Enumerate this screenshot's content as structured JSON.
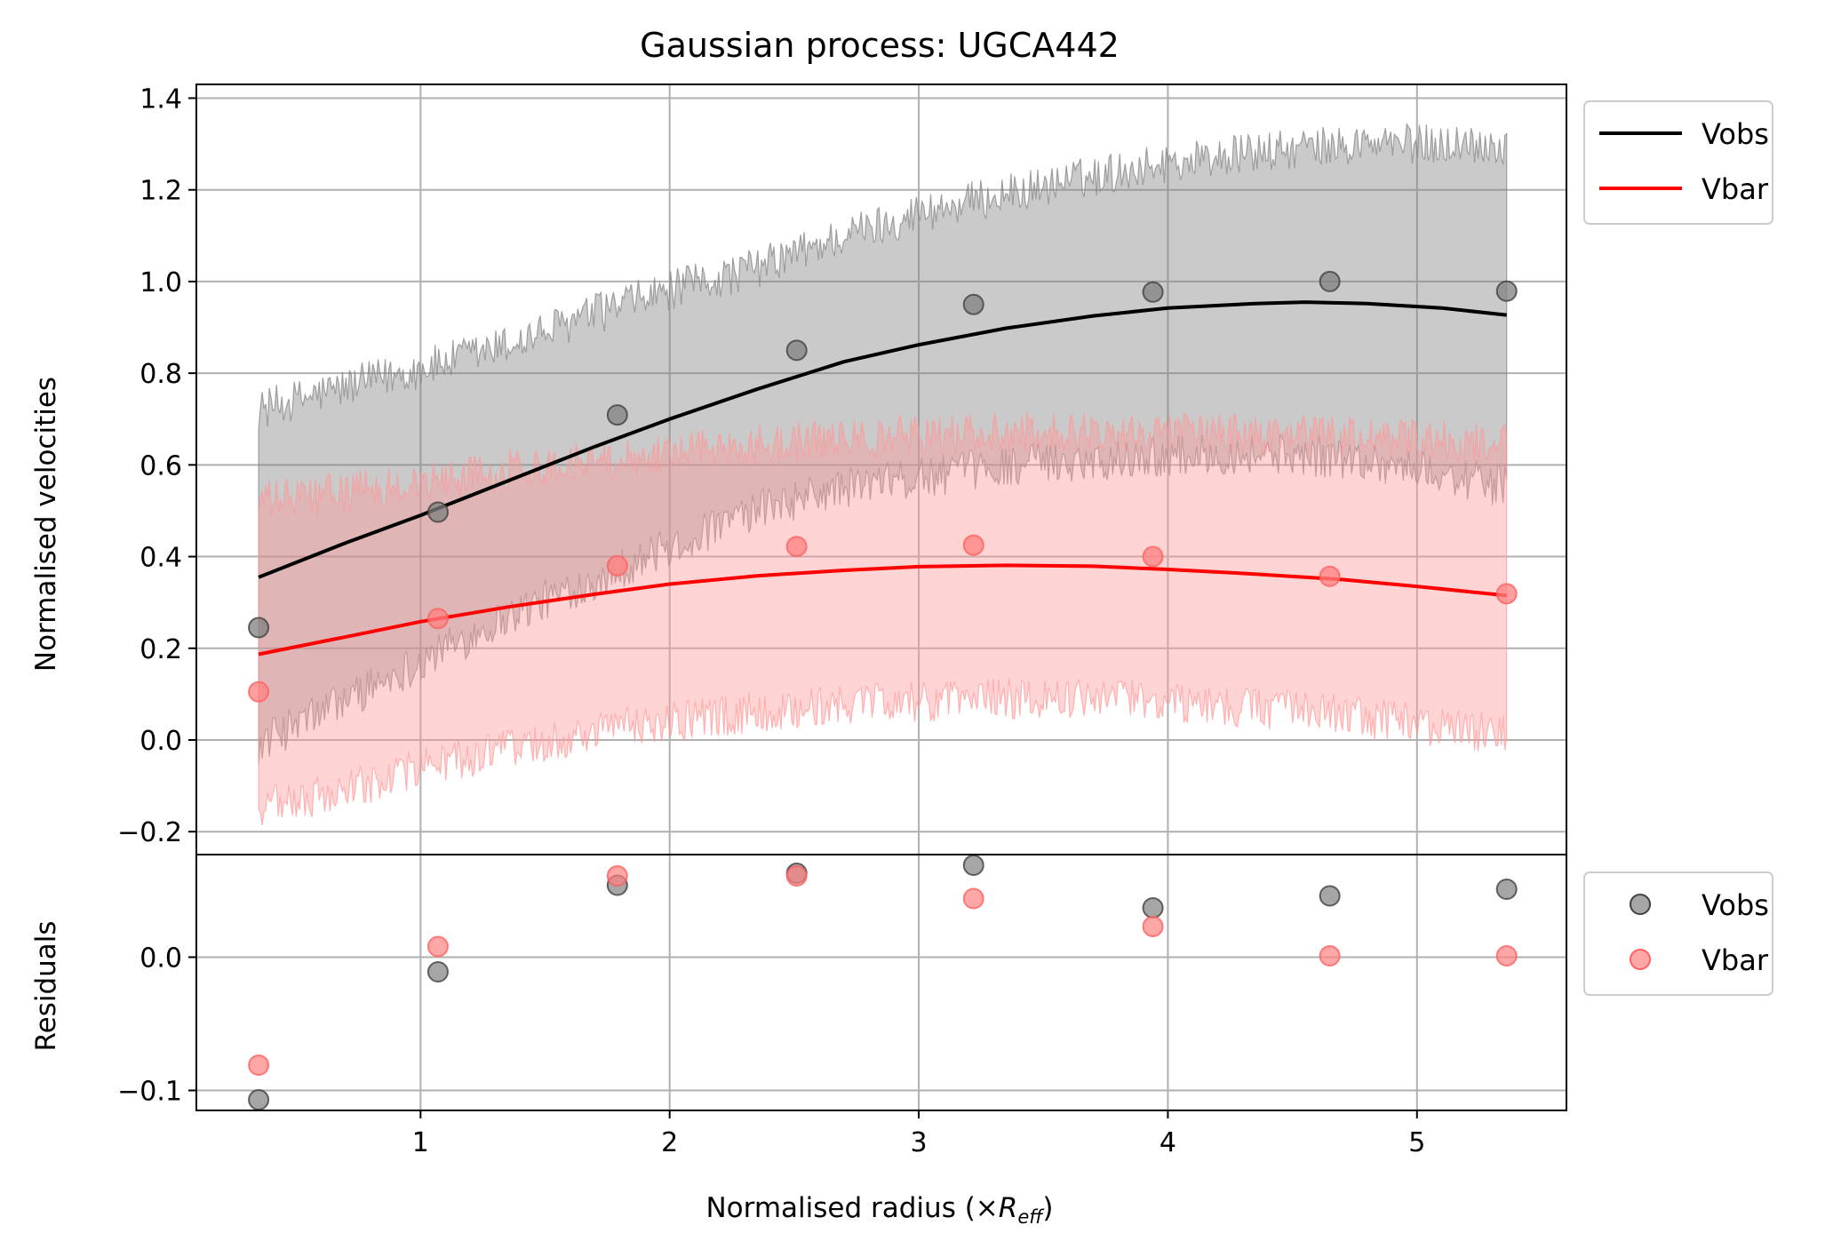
{
  "chart_data": [
    {
      "type": "line",
      "panel": "main",
      "title": "Gaussian process: UGCA442",
      "ylabel": "Normalised velocities",
      "xlim": [
        0.1,
        5.6
      ],
      "ylim": [
        -0.25,
        1.43
      ],
      "yticks": [
        -0.2,
        0.0,
        0.2,
        0.4,
        0.6,
        0.8,
        1.0,
        1.2,
        1.4
      ],
      "ytick_labels": [
        "−0.2",
        "0.0",
        "0.2",
        "0.4",
        "0.6",
        "0.8",
        "1.0",
        "1.2",
        "1.4"
      ],
      "grid": true,
      "legend": "outside-top-right",
      "series": [
        {
          "name": "Vobs",
          "color": "#000000",
          "band_color": "#808080",
          "x": [
            0.35,
            0.7,
            1.0,
            1.35,
            1.7,
            2.0,
            2.35,
            2.7,
            3.0,
            3.35,
            3.7,
            4.0,
            4.35,
            4.55,
            4.8,
            5.1,
            5.36
          ],
          "mean": [
            0.355,
            0.43,
            0.49,
            0.565,
            0.64,
            0.7,
            0.765,
            0.825,
            0.862,
            0.898,
            0.925,
            0.942,
            0.952,
            0.955,
            0.952,
            0.942,
            0.927
          ],
          "upper": [
            0.72,
            0.77,
            0.81,
            0.86,
            0.93,
            0.98,
            1.03,
            1.1,
            1.15,
            1.19,
            1.23,
            1.26,
            1.28,
            1.29,
            1.3,
            1.3,
            1.3
          ],
          "lower": [
            -0.01,
            0.09,
            0.17,
            0.27,
            0.35,
            0.42,
            0.5,
            0.55,
            0.57,
            0.6,
            0.61,
            0.62,
            0.625,
            0.62,
            0.61,
            0.58,
            0.55
          ],
          "points_x": [
            0.35,
            1.07,
            1.79,
            2.51,
            3.22,
            3.94,
            4.65,
            5.36
          ],
          "points_y": [
            0.245,
            0.497,
            0.709,
            0.85,
            0.95,
            0.977,
            1.0,
            0.979
          ]
        },
        {
          "name": "Vbar",
          "color": "#ff0000",
          "band_color": "#ff9999",
          "x": [
            0.35,
            0.7,
            1.0,
            1.35,
            1.7,
            2.0,
            2.35,
            2.7,
            3.0,
            3.35,
            3.7,
            4.0,
            4.35,
            4.7,
            5.0,
            5.36
          ],
          "mean": [
            0.187,
            0.225,
            0.258,
            0.29,
            0.318,
            0.34,
            0.358,
            0.37,
            0.378,
            0.381,
            0.379,
            0.372,
            0.362,
            0.35,
            0.335,
            0.315
          ],
          "upper": [
            0.52,
            0.54,
            0.56,
            0.59,
            0.61,
            0.63,
            0.645,
            0.655,
            0.665,
            0.67,
            0.672,
            0.672,
            0.668,
            0.662,
            0.655,
            0.645
          ],
          "lower": [
            -0.15,
            -0.11,
            -0.06,
            -0.02,
            0.02,
            0.04,
            0.06,
            0.075,
            0.085,
            0.09,
            0.09,
            0.085,
            0.07,
            0.055,
            0.035,
            0.01
          ],
          "points_x": [
            0.35,
            1.07,
            1.79,
            2.51,
            3.22,
            3.94,
            4.65,
            5.36
          ],
          "points_y": [
            0.105,
            0.265,
            0.38,
            0.422,
            0.425,
            0.4,
            0.357,
            0.319
          ]
        }
      ]
    },
    {
      "type": "scatter",
      "panel": "residuals",
      "xlabel": "Normalised radius (×",
      "xlabel_math_base": "R",
      "xlabel_math_sub": "eff",
      "xlabel_suffix": ")",
      "ylabel": "Residuals",
      "xlim": [
        0.1,
        5.6
      ],
      "ylim": [
        -0.115,
        0.077
      ],
      "xticks": [
        1,
        2,
        3,
        4,
        5
      ],
      "xtick_labels": [
        "1",
        "2",
        "3",
        "4",
        "5"
      ],
      "yticks": [
        -0.1,
        0.0
      ],
      "ytick_labels": [
        "−0.1",
        "0.0"
      ],
      "grid": true,
      "legend": "outside-top-right",
      "series": [
        {
          "name": "Vobs",
          "color": "#808080",
          "x": [
            0.35,
            1.07,
            1.79,
            2.51,
            3.22,
            3.94,
            4.65,
            5.36
          ],
          "y": [
            -0.107,
            -0.011,
            0.054,
            0.063,
            0.069,
            0.037,
            0.046,
            0.051
          ]
        },
        {
          "name": "Vbar",
          "color": "#ff8080",
          "x": [
            0.35,
            1.07,
            1.79,
            2.51,
            3.22,
            3.94,
            4.65,
            5.36
          ],
          "y": [
            -0.081,
            0.008,
            0.061,
            0.061,
            0.044,
            0.023,
            0.001,
            0.001
          ]
        }
      ]
    }
  ]
}
